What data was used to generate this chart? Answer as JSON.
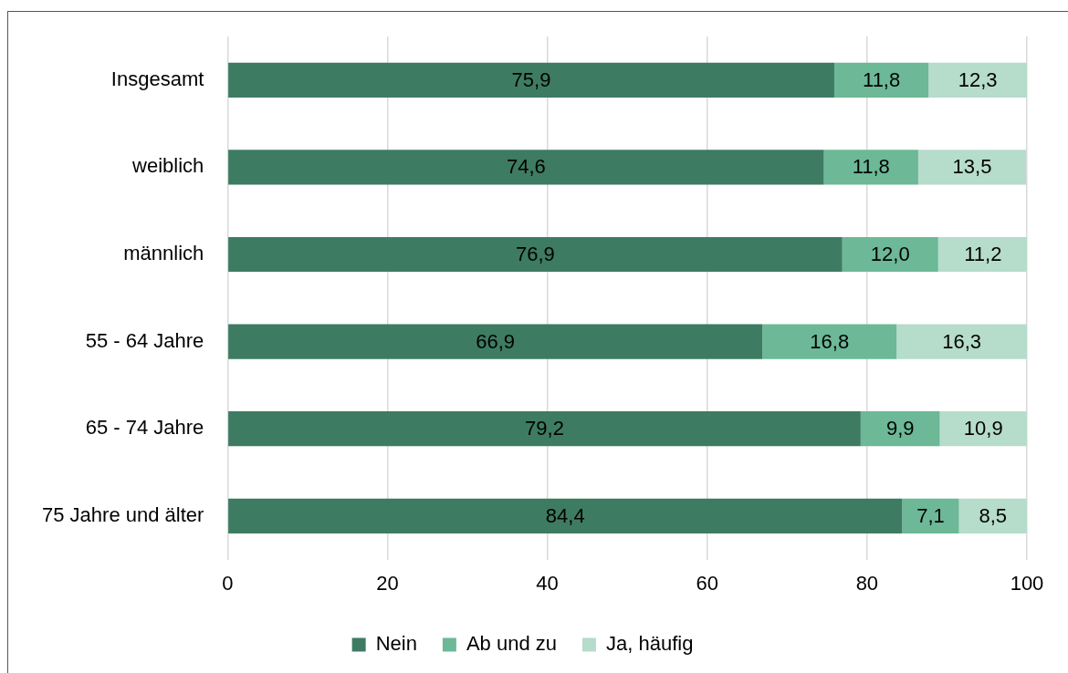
{
  "chart_data": {
    "type": "bar",
    "orientation": "horizontal",
    "stacked": true,
    "categories": [
      "Insgesamt",
      "weiblich",
      "männlich",
      "55 - 64 Jahre",
      "65 - 74 Jahre",
      "75 Jahre und älter"
    ],
    "series": [
      {
        "name": "Nein",
        "color": "#3e7b63",
        "values": [
          75.9,
          74.6,
          76.9,
          66.9,
          79.2,
          84.4
        ],
        "value_labels": [
          "75,9",
          "74,6",
          "76,9",
          "66,9",
          "79,2",
          "84,4"
        ]
      },
      {
        "name": "Ab und zu",
        "color": "#6cb897",
        "values": [
          11.8,
          11.8,
          12.0,
          16.8,
          9.9,
          7.1
        ],
        "value_labels": [
          "11,8",
          "11,8",
          "12,0",
          "16,8",
          "9,9",
          "7,1"
        ]
      },
      {
        "name": "Ja, häufig",
        "color": "#b6dccb",
        "values": [
          12.3,
          13.5,
          11.2,
          16.3,
          10.9,
          8.5
        ],
        "value_labels": [
          "12,3",
          "13,5",
          "11,2",
          "16,3",
          "10,9",
          "8,5"
        ]
      }
    ],
    "xlim": [
      0,
      100
    ],
    "xticks": [
      0,
      20,
      40,
      60,
      80,
      100
    ],
    "grid": "x",
    "legend": "bottom"
  }
}
